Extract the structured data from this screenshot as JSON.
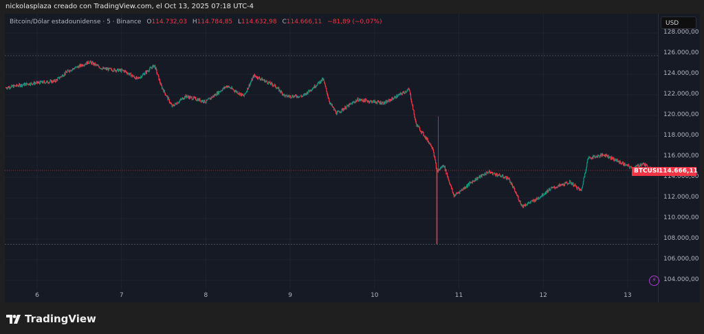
{
  "credit": "nickolasplaza creado con TradingView.com, el Oct 13, 2025 07:18 UTC-4",
  "legend": {
    "symbol": "Bitcoin/Dólar estadounidense · 5 · Binance",
    "o_label": "O",
    "o": "114.732,03",
    "h_label": "H",
    "h": "114.784,85",
    "l_label": "L",
    "l": "114.632,98",
    "c_label": "C",
    "c": "114.666,11",
    "change": "−81,89 (−0,07%)"
  },
  "currency": "USD",
  "price_tag": {
    "symbol": "BTCUSD",
    "price": "114.666,11"
  },
  "brand": "TradingView",
  "colors": {
    "up": "#089981",
    "down": "#f23645",
    "background": "#161a25"
  },
  "chart_data": {
    "type": "candlestick",
    "interval": "5",
    "x_ticks": [
      "6",
      "7",
      "8",
      "9",
      "10",
      "11",
      "12",
      "13"
    ],
    "y_ticks": [
      "128.000,00",
      "126.000,00",
      "124.000,00",
      "122.000,00",
      "120.000,00",
      "118.000,00",
      "116.000,00",
      "114.000,00",
      "112.000,00",
      "110.000,00",
      "108.000,00",
      "106.000,00",
      "104.000,00"
    ],
    "y_tick_values": [
      128000,
      126000,
      124000,
      122000,
      120000,
      118000,
      116000,
      114000,
      112000,
      110000,
      108000,
      106000,
      104000
    ],
    "ylim": [
      103200,
      129800
    ],
    "xlim_days": [
      5.6,
      13.35
    ],
    "last_price": 114666.11,
    "session_high": 125800,
    "session_low": 107500,
    "grid": true,
    "close_path": [
      [
        5.63,
        122700
      ],
      [
        5.89,
        123070
      ],
      [
        6.21,
        123330
      ],
      [
        6.37,
        124330
      ],
      [
        6.62,
        125200
      ],
      [
        6.78,
        124530
      ],
      [
        7.03,
        124330
      ],
      [
        7.19,
        123530
      ],
      [
        7.39,
        124870
      ],
      [
        7.47,
        122870
      ],
      [
        7.6,
        120870
      ],
      [
        7.76,
        121870
      ],
      [
        8.0,
        121330
      ],
      [
        8.25,
        122870
      ],
      [
        8.45,
        121870
      ],
      [
        8.57,
        123870
      ],
      [
        8.82,
        122870
      ],
      [
        8.94,
        121870
      ],
      [
        9.15,
        121870
      ],
      [
        9.39,
        123530
      ],
      [
        9.47,
        121200
      ],
      [
        9.55,
        120200
      ],
      [
        9.8,
        121530
      ],
      [
        10.12,
        121200
      ],
      [
        10.41,
        122530
      ],
      [
        10.49,
        119200
      ],
      [
        10.69,
        116870
      ],
      [
        10.74,
        114530
      ],
      [
        10.82,
        115200
      ],
      [
        10.94,
        112200
      ],
      [
        11.18,
        113730
      ],
      [
        11.35,
        114530
      ],
      [
        11.59,
        113870
      ],
      [
        11.75,
        111200
      ],
      [
        11.92,
        111870
      ],
      [
        12.08,
        112870
      ],
      [
        12.32,
        113530
      ],
      [
        12.45,
        112670
      ],
      [
        12.53,
        115870
      ],
      [
        12.73,
        116200
      ],
      [
        12.89,
        115530
      ],
      [
        13.06,
        114870
      ],
      [
        13.18,
        115330
      ],
      [
        13.3,
        114670
      ]
    ]
  }
}
